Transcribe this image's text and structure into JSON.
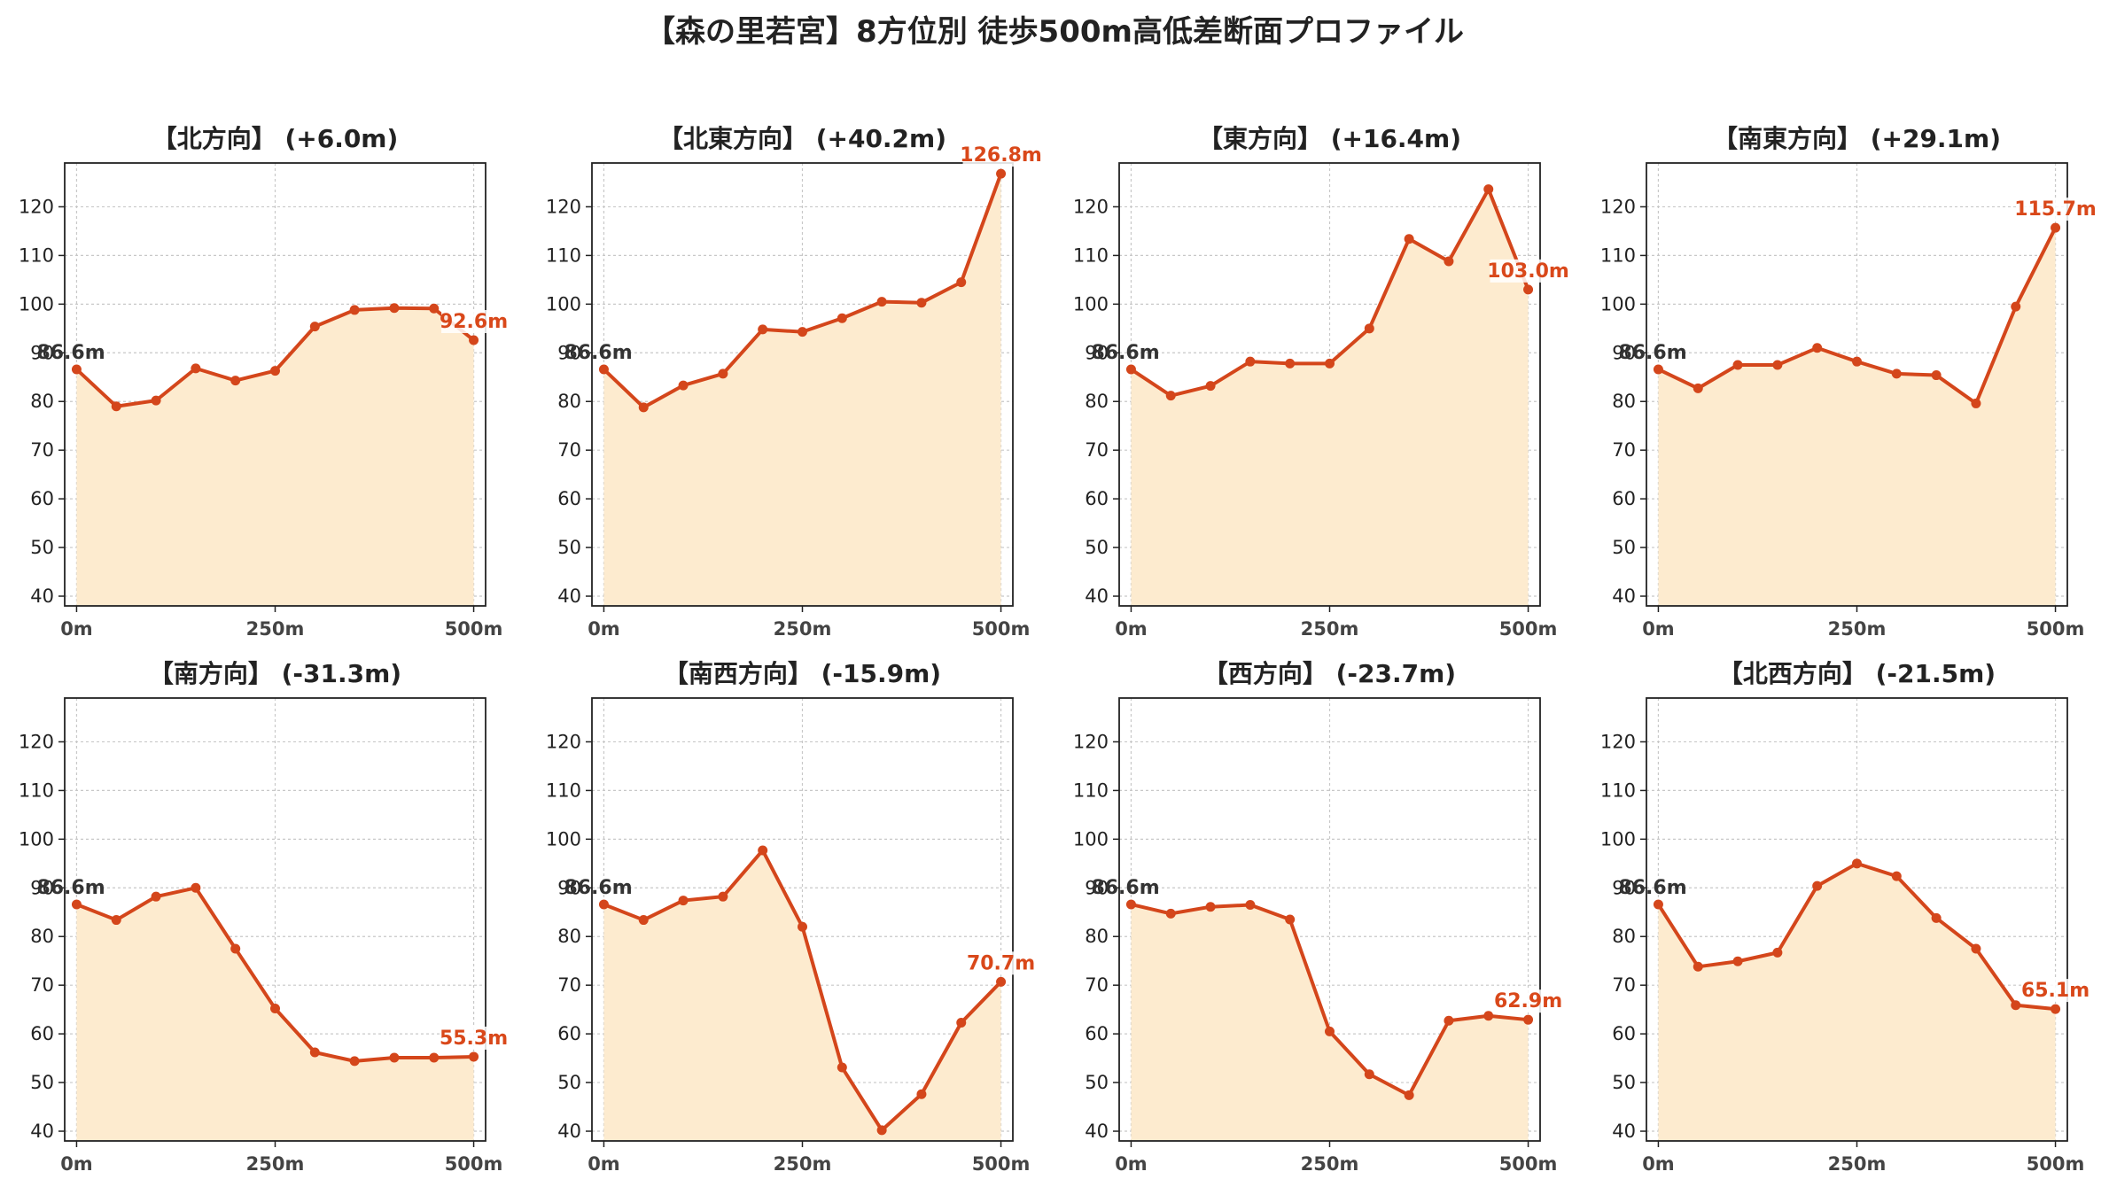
{
  "title": "【森の里若宮】8方位別 徒歩500m高低差断面プロファイル",
  "colors": {
    "line": "#d4461b",
    "fill": "#fdebcf",
    "start_label": "#333333",
    "end_label": "#d9481a",
    "grid": "#c8c8c8"
  },
  "chart_data": [
    {
      "type": "area",
      "title": "【北方向】 (+6.0m)",
      "x": [
        0,
        50,
        100,
        150,
        200,
        250,
        300,
        350,
        400,
        450,
        500
      ],
      "y": [
        86.6,
        79.0,
        80.2,
        86.8,
        84.3,
        86.3,
        95.4,
        98.8,
        99.2,
        99.1,
        92.6
      ],
      "start_label": "86.6m",
      "end_label": "92.6m",
      "xticks": [
        "0m",
        "250m",
        "500m"
      ],
      "yticks": [
        "40",
        "50",
        "60",
        "70",
        "80",
        "90",
        "100",
        "110",
        "120"
      ],
      "xlim": [
        -15,
        515
      ],
      "ylim": [
        38,
        129
      ],
      "grid": true
    },
    {
      "type": "area",
      "title": "【北東方向】 (+40.2m)",
      "x": [
        0,
        50,
        100,
        150,
        200,
        250,
        300,
        350,
        400,
        450,
        500
      ],
      "y": [
        86.6,
        78.8,
        83.3,
        85.7,
        94.8,
        94.3,
        97.1,
        100.5,
        100.3,
        104.5,
        126.8
      ],
      "start_label": "86.6m",
      "end_label": "126.8m",
      "xticks": [
        "0m",
        "250m",
        "500m"
      ],
      "yticks": [
        "40",
        "50",
        "60",
        "70",
        "80",
        "90",
        "100",
        "110",
        "120"
      ],
      "xlim": [
        -15,
        515
      ],
      "ylim": [
        38,
        129
      ],
      "grid": true
    },
    {
      "type": "area",
      "title": "【東方向】 (+16.4m)",
      "x": [
        0,
        50,
        100,
        150,
        200,
        250,
        300,
        350,
        400,
        450,
        500
      ],
      "y": [
        86.6,
        81.2,
        83.2,
        88.2,
        87.8,
        87.8,
        95.0,
        113.4,
        108.8,
        123.6,
        103.0
      ],
      "start_label": "86.6m",
      "end_label": "103.0m",
      "xticks": [
        "0m",
        "250m",
        "500m"
      ],
      "yticks": [
        "40",
        "50",
        "60",
        "70",
        "80",
        "90",
        "100",
        "110",
        "120"
      ],
      "xlim": [
        -15,
        515
      ],
      "ylim": [
        38,
        129
      ],
      "grid": true
    },
    {
      "type": "area",
      "title": "【南東方向】 (+29.1m)",
      "x": [
        0,
        50,
        100,
        150,
        200,
        250,
        300,
        350,
        400,
        450,
        500
      ],
      "y": [
        86.6,
        82.7,
        87.5,
        87.5,
        91.0,
        88.2,
        85.7,
        85.4,
        79.6,
        99.5,
        115.7
      ],
      "start_label": "86.6m",
      "end_label": "115.7m",
      "xticks": [
        "0m",
        "250m",
        "500m"
      ],
      "yticks": [
        "40",
        "50",
        "60",
        "70",
        "80",
        "90",
        "100",
        "110",
        "120"
      ],
      "xlim": [
        -15,
        515
      ],
      "ylim": [
        38,
        129
      ],
      "grid": true
    },
    {
      "type": "area",
      "title": "【南方向】 (-31.3m)",
      "x": [
        0,
        50,
        100,
        150,
        200,
        250,
        300,
        350,
        400,
        450,
        500
      ],
      "y": [
        86.6,
        83.4,
        88.2,
        90.0,
        77.5,
        65.2,
        56.2,
        54.4,
        55.1,
        55.1,
        55.3
      ],
      "start_label": "86.6m",
      "end_label": "55.3m",
      "xticks": [
        "0m",
        "250m",
        "500m"
      ],
      "yticks": [
        "40",
        "50",
        "60",
        "70",
        "80",
        "90",
        "100",
        "110",
        "120"
      ],
      "xlim": [
        -15,
        515
      ],
      "ylim": [
        38,
        129
      ],
      "grid": true
    },
    {
      "type": "area",
      "title": "【南西方向】 (-15.9m)",
      "x": [
        0,
        50,
        100,
        150,
        200,
        250,
        300,
        350,
        400,
        450,
        500
      ],
      "y": [
        86.6,
        83.4,
        87.4,
        88.2,
        97.7,
        82.0,
        53.1,
        40.2,
        47.6,
        62.3,
        70.7
      ],
      "start_label": "86.6m",
      "end_label": "70.7m",
      "xticks": [
        "0m",
        "250m",
        "500m"
      ],
      "yticks": [
        "40",
        "50",
        "60",
        "70",
        "80",
        "90",
        "100",
        "110",
        "120"
      ],
      "xlim": [
        -15,
        515
      ],
      "ylim": [
        38,
        129
      ],
      "grid": true
    },
    {
      "type": "area",
      "title": "【西方向】 (-23.7m)",
      "x": [
        0,
        50,
        100,
        150,
        200,
        250,
        300,
        350,
        400,
        450,
        500
      ],
      "y": [
        86.6,
        84.7,
        86.1,
        86.5,
        83.5,
        60.5,
        51.7,
        47.4,
        62.7,
        63.7,
        62.9
      ],
      "start_label": "86.6m",
      "end_label": "62.9m",
      "xticks": [
        "0m",
        "250m",
        "500m"
      ],
      "yticks": [
        "40",
        "50",
        "60",
        "70",
        "80",
        "90",
        "100",
        "110",
        "120"
      ],
      "xlim": [
        -15,
        515
      ],
      "ylim": [
        38,
        129
      ],
      "grid": true
    },
    {
      "type": "area",
      "title": "【北西方向】 (-21.5m)",
      "x": [
        0,
        50,
        100,
        150,
        200,
        250,
        300,
        350,
        400,
        450,
        500
      ],
      "y": [
        86.6,
        73.8,
        74.9,
        76.7,
        90.4,
        95.0,
        92.4,
        83.8,
        77.5,
        65.9,
        65.1
      ],
      "start_label": "86.6m",
      "end_label": "65.1m",
      "xticks": [
        "0m",
        "250m",
        "500m"
      ],
      "yticks": [
        "40",
        "50",
        "60",
        "70",
        "80",
        "90",
        "100",
        "110",
        "120"
      ],
      "xlim": [
        -15,
        515
      ],
      "ylim": [
        38,
        129
      ],
      "grid": true
    }
  ]
}
